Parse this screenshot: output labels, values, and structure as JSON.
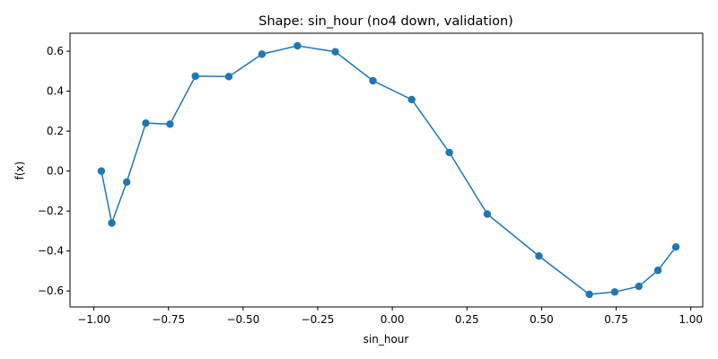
{
  "chart_data": {
    "type": "line",
    "title": "Shape: sin_hour (no4 down, validation)",
    "xlabel": "sin_hour",
    "ylabel": "f(x)",
    "xlim": [
      -1.08,
      1.04
    ],
    "ylim": [
      -0.68,
      0.69
    ],
    "x_ticks": [
      -1.0,
      -0.75,
      -0.5,
      -0.25,
      0.0,
      0.25,
      0.5,
      0.75,
      1.0
    ],
    "x_tick_labels": [
      "−1.00",
      "−0.75",
      "−0.50",
      "−0.25",
      "0.00",
      "0.25",
      "0.50",
      "0.75",
      "1.00"
    ],
    "y_ticks": [
      -0.6,
      -0.4,
      -0.2,
      0.0,
      0.2,
      0.4,
      0.6
    ],
    "y_tick_labels": [
      "−0.6",
      "−0.4",
      "−0.2",
      "0.0",
      "0.2",
      "0.4",
      "0.6"
    ],
    "grid": false,
    "series": [
      {
        "color": "#1f77b4",
        "marker": "circle",
        "x": [
          -0.975,
          -0.94,
          -0.89,
          -0.826,
          -0.745,
          -0.66,
          -0.548,
          -0.437,
          -0.318,
          -0.191,
          -0.065,
          0.065,
          0.191,
          0.318,
          0.491,
          0.66,
          0.745,
          0.826,
          0.89,
          0.95
        ],
        "y": [
          0.0,
          -0.26,
          -0.055,
          0.24,
          0.235,
          0.475,
          0.473,
          0.585,
          0.627,
          0.597,
          0.452,
          0.358,
          0.093,
          -0.215,
          -0.425,
          -0.617,
          -0.605,
          -0.577,
          -0.497,
          -0.38
        ]
      }
    ]
  }
}
